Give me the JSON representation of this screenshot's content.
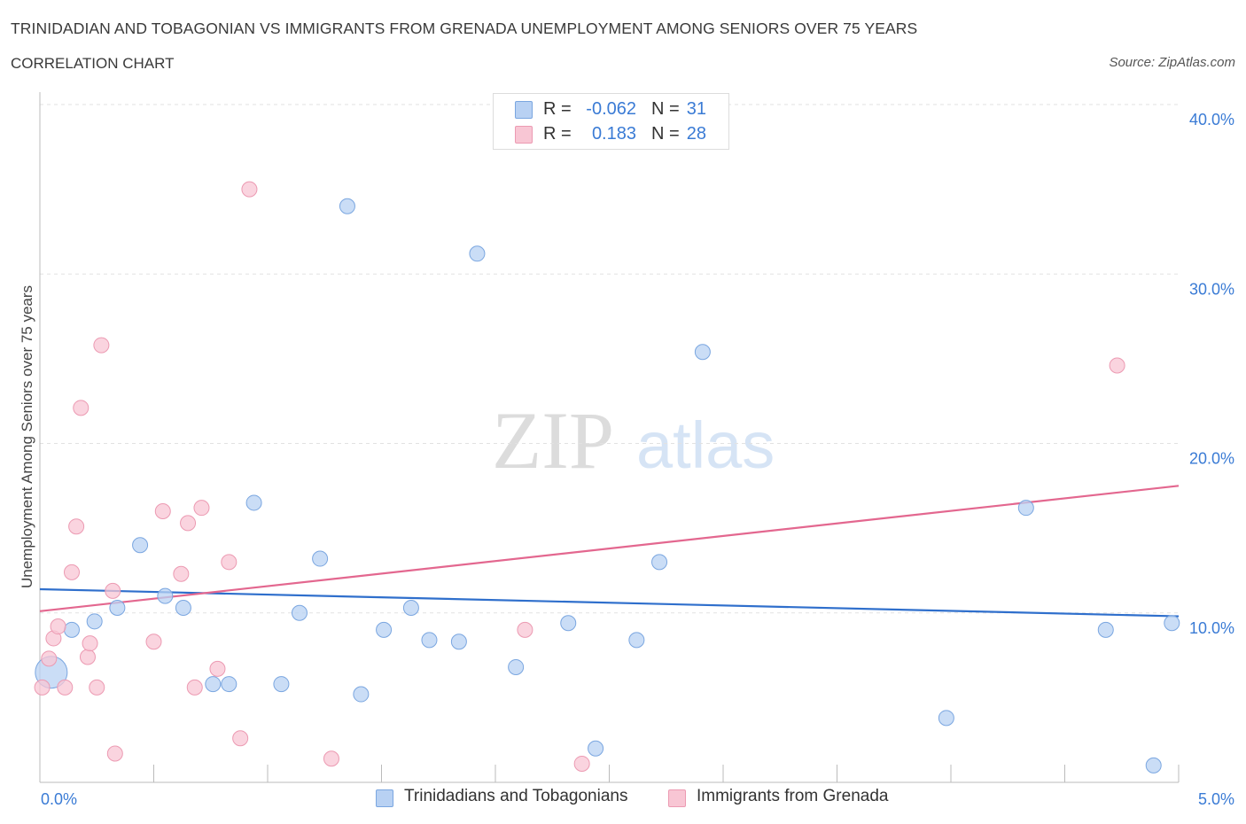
{
  "header": {
    "title": "TRINIDADIAN AND TOBAGONIAN VS IMMIGRANTS FROM GRENADA UNEMPLOYMENT AMONG SENIORS OVER 75 YEARS",
    "subtitle": "CORRELATION CHART",
    "source": "Source: ZipAtlas.com"
  },
  "watermark": {
    "zip": "ZIP",
    "atlas": "atlas"
  },
  "colors": {
    "blue_fill": "#b8d1f3",
    "blue_stroke": "#7aa6e0",
    "blue_line": "#2f6fcc",
    "pink_fill": "#f8c6d4",
    "pink_stroke": "#ec9ab2",
    "pink_line": "#e3678f",
    "axis_text": "#3a7bd5",
    "grid": "#e2e2e2"
  },
  "legend_top": {
    "rows": [
      {
        "r_label": "R =",
        "r_value": "-0.062",
        "n_label": "N =",
        "n_value": "31"
      },
      {
        "r_label": "R =",
        "r_value": "0.183",
        "n_label": "N =",
        "n_value": "28"
      }
    ]
  },
  "legend_bottom": {
    "items": [
      {
        "label": "Trinidadians and Tobagonians"
      },
      {
        "label": "Immigrants from Grenada"
      }
    ]
  },
  "chart_data": {
    "type": "scatter",
    "title": "TRINIDADIAN AND TOBAGONIAN VS IMMIGRANTS FROM GRENADA UNEMPLOYMENT AMONG SENIORS OVER 75 YEARS",
    "subtitle": "CORRELATION CHART",
    "xlabel": "",
    "ylabel": "Unemployment Among Seniors over 75 years",
    "xlim": [
      0,
      5
    ],
    "ylim": [
      0,
      40
    ],
    "x_tick_labels": [
      "0.0%",
      "5.0%"
    ],
    "y_ticks": [
      10,
      20,
      30,
      40
    ],
    "y_tick_labels": [
      "10.0%",
      "20.0%",
      "30.0%",
      "40.0%"
    ],
    "grid": true,
    "legend_position": "top-center",
    "series": [
      {
        "name": "Trinidadians and Tobagonians",
        "color": "blue",
        "R": -0.062,
        "N": 31,
        "trend": {
          "x": [
            0,
            5
          ],
          "y": [
            11.4,
            9.8
          ]
        },
        "points": [
          {
            "x": 0.05,
            "y": 6.5,
            "big": true
          },
          {
            "x": 0.14,
            "y": 9.0
          },
          {
            "x": 0.24,
            "y": 9.5
          },
          {
            "x": 0.34,
            "y": 10.3
          },
          {
            "x": 0.44,
            "y": 14.0
          },
          {
            "x": 0.55,
            "y": 11.0
          },
          {
            "x": 0.63,
            "y": 10.3
          },
          {
            "x": 0.76,
            "y": 5.8
          },
          {
            "x": 0.83,
            "y": 5.8
          },
          {
            "x": 0.94,
            "y": 16.5
          },
          {
            "x": 1.06,
            "y": 5.8
          },
          {
            "x": 1.14,
            "y": 10.0
          },
          {
            "x": 1.23,
            "y": 13.2
          },
          {
            "x": 1.35,
            "y": 34.0
          },
          {
            "x": 1.41,
            "y": 5.2
          },
          {
            "x": 1.51,
            "y": 9.0
          },
          {
            "x": 1.63,
            "y": 10.3
          },
          {
            "x": 1.71,
            "y": 8.4
          },
          {
            "x": 1.84,
            "y": 8.3
          },
          {
            "x": 1.92,
            "y": 31.2
          },
          {
            "x": 2.09,
            "y": 6.8
          },
          {
            "x": 2.32,
            "y": 9.4
          },
          {
            "x": 2.44,
            "y": 2.0
          },
          {
            "x": 2.62,
            "y": 8.4
          },
          {
            "x": 2.72,
            "y": 13.0
          },
          {
            "x": 2.91,
            "y": 25.4
          },
          {
            "x": 3.98,
            "y": 3.8
          },
          {
            "x": 4.33,
            "y": 16.2
          },
          {
            "x": 4.68,
            "y": 9.0
          },
          {
            "x": 4.89,
            "y": 1.0
          },
          {
            "x": 4.97,
            "y": 9.4
          }
        ]
      },
      {
        "name": "Immigrants from Grenada",
        "color": "pink",
        "R": 0.183,
        "N": 28,
        "trend": {
          "x": [
            0,
            5
          ],
          "y": [
            10.1,
            17.5
          ]
        },
        "points": [
          {
            "x": 0.01,
            "y": 5.6
          },
          {
            "x": 0.04,
            "y": 7.3
          },
          {
            "x": 0.06,
            "y": 8.5
          },
          {
            "x": 0.08,
            "y": 9.2
          },
          {
            "x": 0.11,
            "y": 5.6
          },
          {
            "x": 0.14,
            "y": 12.4
          },
          {
            "x": 0.16,
            "y": 15.1
          },
          {
            "x": 0.18,
            "y": 22.1
          },
          {
            "x": 0.21,
            "y": 7.4
          },
          {
            "x": 0.22,
            "y": 8.2
          },
          {
            "x": 0.25,
            "y": 5.6
          },
          {
            "x": 0.27,
            "y": 25.8
          },
          {
            "x": 0.32,
            "y": 11.3
          },
          {
            "x": 0.33,
            "y": 1.7
          },
          {
            "x": 0.5,
            "y": 8.3
          },
          {
            "x": 0.54,
            "y": 16.0
          },
          {
            "x": 0.62,
            "y": 12.3
          },
          {
            "x": 0.65,
            "y": 15.3
          },
          {
            "x": 0.68,
            "y": 5.6
          },
          {
            "x": 0.71,
            "y": 16.2
          },
          {
            "x": 0.78,
            "y": 6.7
          },
          {
            "x": 0.83,
            "y": 13.0
          },
          {
            "x": 0.88,
            "y": 2.6
          },
          {
            "x": 0.92,
            "y": 35.0
          },
          {
            "x": 1.28,
            "y": 1.4
          },
          {
            "x": 2.13,
            "y": 9.0
          },
          {
            "x": 2.38,
            "y": 1.1
          },
          {
            "x": 4.73,
            "y": 24.6
          }
        ]
      }
    ]
  }
}
